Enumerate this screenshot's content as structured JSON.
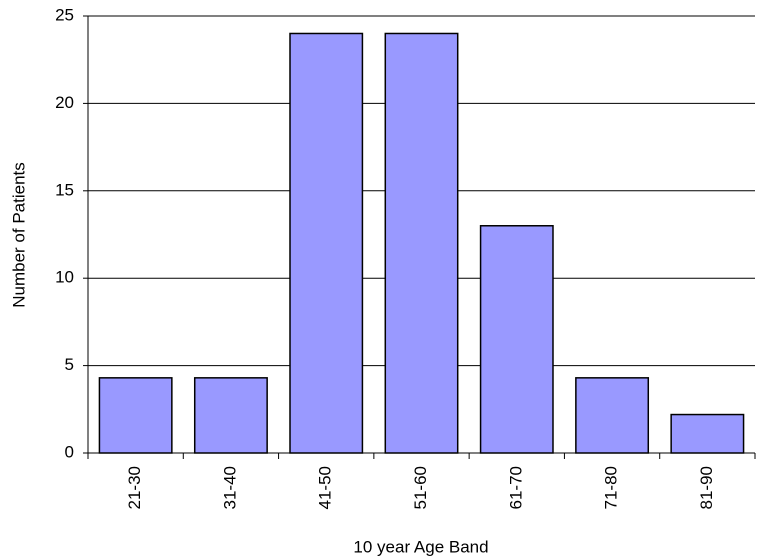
{
  "chart_data": {
    "type": "bar",
    "x_label": "10 year Age Band",
    "y_label": "Number of Patients",
    "categories": [
      "21-30",
      "31-40",
      "41-50",
      "51-60",
      "61-70",
      "71-80",
      "81-90"
    ],
    "values": [
      4.3,
      4.3,
      24,
      24,
      13,
      4.3,
      2.2
    ],
    "color": "#9999ff",
    "ylim": [
      0,
      25
    ],
    "yticks": [
      0,
      5,
      10,
      15,
      20,
      25
    ],
    "grid": true
  }
}
